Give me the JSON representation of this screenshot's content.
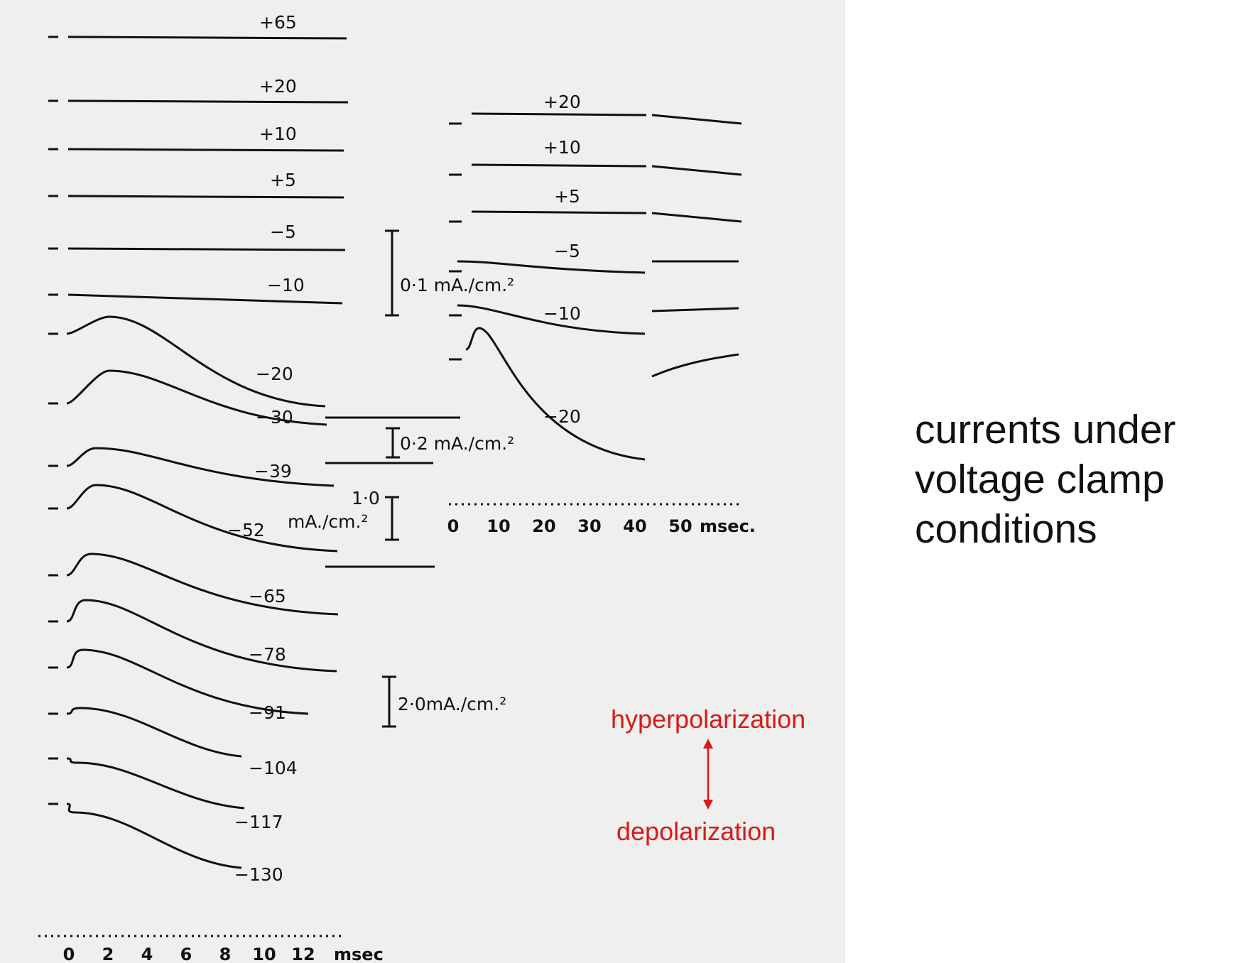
{
  "chart_data": [
    {
      "type": "line",
      "title": "",
      "xlabel": "msec",
      "x_ticks": [
        "0",
        "2",
        "4",
        "6",
        "8",
        "10",
        "12"
      ],
      "xlim": [
        0,
        13
      ],
      "series": [
        {
          "name": "+65",
          "kind": "flat"
        },
        {
          "name": "+20",
          "kind": "flat"
        },
        {
          "name": "+10",
          "kind": "flat"
        },
        {
          "name": "+5",
          "kind": "flat"
        },
        {
          "name": "−5",
          "kind": "flat"
        },
        {
          "name": "−10",
          "kind": "flat"
        },
        {
          "name": "−20",
          "kind": "peak",
          "peak_ms": 1.5
        },
        {
          "name": "−30",
          "kind": "peak",
          "peak_ms": 1.5
        },
        {
          "name": "−39",
          "kind": "peak",
          "peak_ms": 1.0
        },
        {
          "name": "−52",
          "kind": "peak",
          "peak_ms": 1.0
        },
        {
          "name": "−65",
          "kind": "peak",
          "peak_ms": 0.8
        },
        {
          "name": "−78",
          "kind": "peak",
          "peak_ms": 0.6
        },
        {
          "name": "−91",
          "kind": "peak",
          "peak_ms": 0.5
        },
        {
          "name": "−104",
          "kind": "peak",
          "peak_ms": 0.4
        },
        {
          "name": "−117",
          "kind": "peak",
          "peak_ms": 0.3
        },
        {
          "name": "−130",
          "kind": "peak",
          "peak_ms": 0.2
        }
      ],
      "scale_bars": [
        "0·1 mA./cm.²",
        "0·2 mA./cm.²",
        "1·0",
        "mA./cm.²",
        "2·0mA./cm.²"
      ]
    },
    {
      "type": "line",
      "title": "",
      "xlabel": "msec.",
      "x_ticks": [
        "0",
        "10",
        "20",
        "30",
        "40",
        "50"
      ],
      "xlim": [
        0,
        55
      ],
      "series": [
        {
          "name": "+20",
          "kind": "flat"
        },
        {
          "name": "+10",
          "kind": "flat"
        },
        {
          "name": "+5",
          "kind": "flat"
        },
        {
          "name": "−5",
          "kind": "flat"
        },
        {
          "name": "−10",
          "kind": "flat"
        },
        {
          "name": "−20",
          "kind": "peak",
          "peak_ms": 3
        }
      ]
    }
  ],
  "caption": {
    "line1": "currents under",
    "line2": "voltage clamp",
    "line3": "conditions"
  },
  "arrow_labels": {
    "top": "hyperpolarization",
    "bottom": "depolarization"
  },
  "colors": {
    "accent": "#d81a1a",
    "ink": "#111111",
    "paper": "#efefed"
  }
}
